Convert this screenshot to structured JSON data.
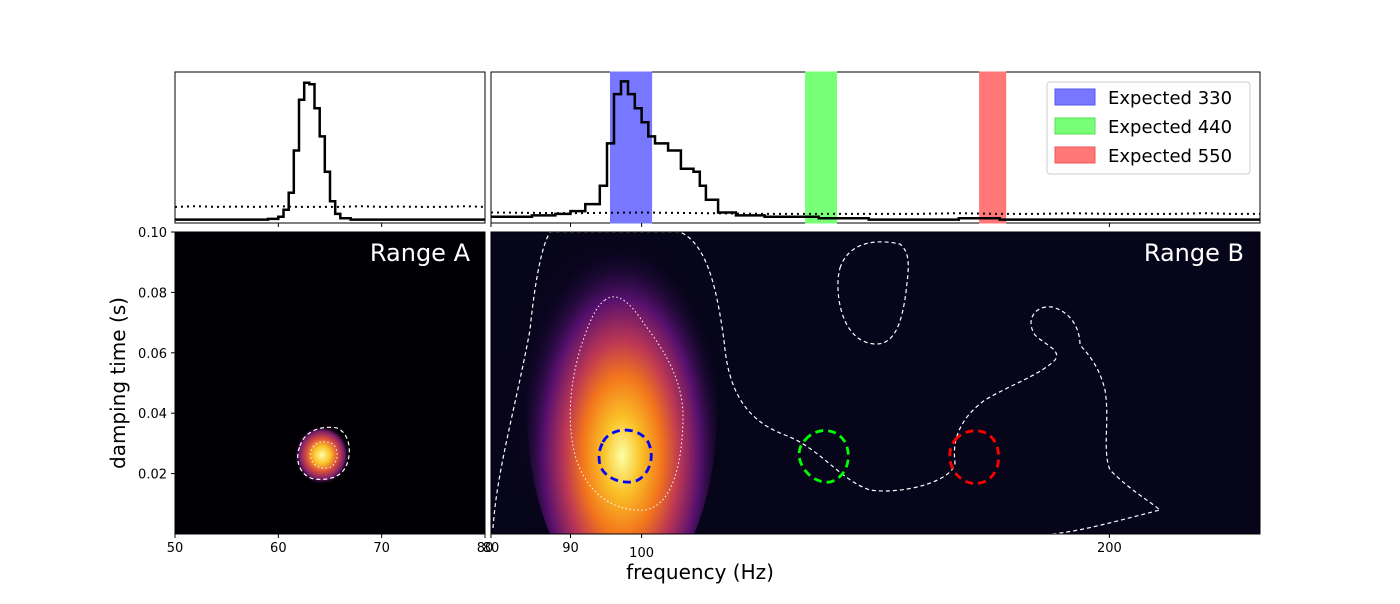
{
  "chart_data": [
    {
      "type": "line",
      "panel": "top-left marginal",
      "xlim": [
        50,
        80
      ],
      "series": [
        {
          "style": "solid",
          "color": "#000000",
          "x": [
            50,
            55,
            58,
            59,
            60,
            60.5,
            61,
            61.5,
            62,
            62.5,
            63,
            63.5,
            64,
            64.5,
            65,
            65.5,
            66,
            67,
            70,
            75,
            80
          ],
          "y": [
            0.01,
            0.01,
            0.01,
            0.015,
            0.03,
            0.08,
            0.2,
            0.5,
            0.86,
            0.98,
            0.97,
            0.8,
            0.6,
            0.35,
            0.14,
            0.05,
            0.02,
            0.01,
            0.01,
            0.01,
            0.01
          ]
        },
        {
          "style": "dotted",
          "color": "#000000",
          "x": [
            50,
            52,
            54,
            56,
            58,
            60,
            62,
            64,
            66,
            68,
            70,
            72,
            74,
            76,
            78,
            80
          ],
          "y": [
            0.1,
            0.105,
            0.1,
            0.102,
            0.1,
            0.105,
            0.1,
            0.1,
            0.1,
            0.105,
            0.1,
            0.102,
            0.1,
            0.1,
            0.105,
            0.1
          ]
        }
      ]
    },
    {
      "type": "line",
      "panel": "top-right marginal",
      "xlim": [
        80,
        250
      ],
      "series": [
        {
          "style": "solid",
          "color": "#000000",
          "x": [
            80,
            85,
            88,
            90,
            92,
            94,
            95,
            96,
            97,
            98,
            99,
            100,
            101,
            102,
            104,
            106,
            108,
            109,
            110,
            112,
            115,
            120,
            130,
            140,
            150,
            160,
            170,
            180,
            190,
            200,
            210,
            220,
            230,
            240,
            250
          ],
          "y": [
            0.03,
            0.04,
            0.05,
            0.07,
            0.12,
            0.25,
            0.55,
            0.9,
            0.99,
            0.9,
            0.8,
            0.7,
            0.6,
            0.55,
            0.5,
            0.37,
            0.35,
            0.25,
            0.15,
            0.06,
            0.04,
            0.03,
            0.02,
            0.01,
            0.01,
            0.02,
            0.01,
            0.01,
            0.01,
            0.01,
            0.01,
            0.01,
            0.01,
            0.01,
            0.01
          ]
        },
        {
          "style": "dotted",
          "color": "#000000",
          "x": [
            80,
            90,
            100,
            110,
            120,
            130,
            140,
            150,
            160,
            170,
            180,
            190,
            200,
            210,
            220,
            230,
            240,
            250
          ],
          "y": [
            0.06,
            0.055,
            0.06,
            0.055,
            0.05,
            0.05,
            0.05,
            0.05,
            0.055,
            0.05,
            0.05,
            0.055,
            0.05,
            0.05,
            0.05,
            0.055,
            0.05,
            0.05
          ]
        }
      ],
      "bands": [
        {
          "label": "Expected 330",
          "x0": 95.5,
          "x1": 101.5,
          "color": "#7777ff"
        },
        {
          "label": "Expected 440",
          "x0": 127.5,
          "x1": 133.5,
          "color": "#77ff77"
        },
        {
          "label": "Expected 550",
          "x0": 165,
          "x1": 171.5,
          "color": "#ff7777"
        }
      ],
      "legend": "top-right"
    },
    {
      "type": "heatmap",
      "panel": "Range A",
      "label": "Range A",
      "xlim": [
        50,
        80
      ],
      "ylim": [
        0,
        0.1
      ],
      "xticks": [
        "50",
        "60",
        "70",
        "80"
      ],
      "yticks": [
        "0.02",
        "0.04",
        "0.06",
        "0.08",
        "0.10"
      ],
      "peak": {
        "x": 62.5,
        "y": 0.026
      },
      "colormap": "inferno"
    },
    {
      "type": "heatmap",
      "panel": "Range B",
      "label": "Range B",
      "xlim": [
        80,
        250
      ],
      "ylim": [
        0,
        0.1
      ],
      "xticks": [
        "80",
        "90",
        "100",
        "200"
      ],
      "peak": {
        "x": 97,
        "y": 0.034
      },
      "expected_regions": [
        {
          "label": "Expected 330",
          "x": 97.5,
          "y": 0.027,
          "color": "#0000ff"
        },
        {
          "label": "Expected 440",
          "x": 130.5,
          "y": 0.026,
          "color": "#00ff00"
        },
        {
          "label": "Expected 550",
          "x": 168,
          "y": 0.026,
          "color": "#ff0000"
        }
      ],
      "colormap": "inferno"
    }
  ],
  "labels": {
    "xlabel": "frequency (Hz)",
    "ylabel": "damping time (s)",
    "range_a": "Range A",
    "range_b": "Range B"
  },
  "legend": [
    {
      "label": "Expected 330",
      "color": "#7777ff"
    },
    {
      "label": "Expected 440",
      "color": "#77ff77"
    },
    {
      "label": "Expected 550",
      "color": "#ff7777"
    }
  ]
}
